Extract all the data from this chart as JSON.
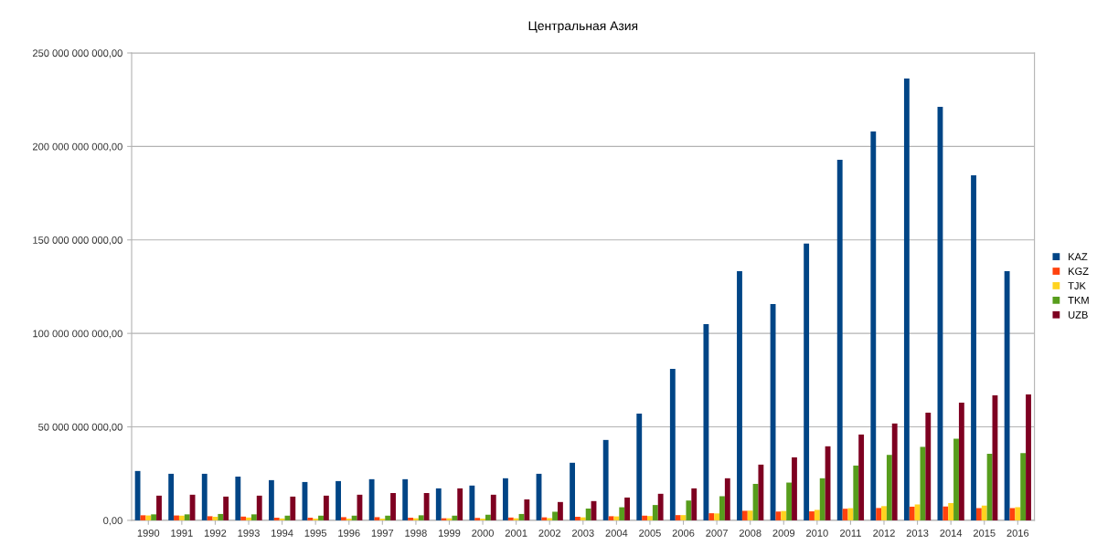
{
  "chart_data": {
    "type": "bar",
    "title": "Центральная Азия",
    "categories": [
      "1990",
      "1991",
      "1992",
      "1993",
      "1994",
      "1995",
      "1996",
      "1997",
      "1998",
      "1999",
      "2000",
      "2001",
      "2002",
      "2003",
      "2004",
      "2005",
      "2006",
      "2007",
      "2008",
      "2009",
      "2010",
      "2011",
      "2012",
      "2013",
      "2014",
      "2015",
      "2016"
    ],
    "series": [
      {
        "name": "KAZ",
        "color": "#004586",
        "values": [
          26400000000,
          24900000000,
          24900000000,
          23400000000,
          21500000000,
          20500000000,
          21000000000,
          22000000000,
          22000000000,
          17100000000,
          18600000000,
          22500000000,
          24900000000,
          30800000000,
          43000000000,
          57100000000,
          81000000000,
          105000000000,
          133300000000,
          115700000000,
          148000000000,
          192900000000,
          208000000000,
          236300000000,
          221200000000,
          184600000000,
          133300000000
        ]
      },
      {
        "name": "KGZ",
        "color": "#ff420e",
        "values": [
          2700000000,
          2600000000,
          2200000000,
          2000000000,
          1400000000,
          1400000000,
          1700000000,
          1700000000,
          1400000000,
          1100000000,
          1300000000,
          1500000000,
          1600000000,
          1900000000,
          2200000000,
          2500000000,
          2800000000,
          3800000000,
          5100000000,
          4700000000,
          4800000000,
          6200000000,
          6600000000,
          7300000000,
          7400000000,
          6600000000,
          6500000000
        ]
      },
      {
        "name": "TJK",
        "color": "#ffd320",
        "values": [
          2600000000,
          2500000000,
          1900000000,
          1500000000,
          1000000000,
          900000000,
          900000000,
          900000000,
          1100000000,
          1100000000,
          900000000,
          1100000000,
          1200000000,
          1600000000,
          2100000000,
          2300000000,
          2800000000,
          3700000000,
          5200000000,
          5000000000,
          5600000000,
          6500000000,
          7600000000,
          8500000000,
          9200000000,
          7900000000,
          7000000000
        ]
      },
      {
        "name": "TKM",
        "color": "#579d1c",
        "values": [
          3200000000,
          3200000000,
          3400000000,
          3200000000,
          2500000000,
          2500000000,
          2500000000,
          2500000000,
          2700000000,
          2500000000,
          3000000000,
          3400000000,
          4600000000,
          6300000000,
          7000000000,
          8200000000,
          10600000000,
          12900000000,
          19500000000,
          20200000000,
          22500000000,
          29300000000,
          35000000000,
          39300000000,
          43600000000,
          35600000000,
          36000000000
        ]
      },
      {
        "name": "UZB",
        "color": "#7e0021",
        "values": [
          13200000000,
          13700000000,
          12700000000,
          13200000000,
          12700000000,
          13200000000,
          13700000000,
          14600000000,
          14600000000,
          17100000000,
          13700000000,
          11200000000,
          9800000000,
          10300000000,
          12200000000,
          14200000000,
          17100000000,
          22500000000,
          29800000000,
          33700000000,
          39600000000,
          45900000000,
          51800000000,
          57600000000,
          63000000000,
          66900000000,
          67400000000
        ]
      }
    ],
    "ylim": [
      0,
      250000000000
    ],
    "yticks": [
      {
        "value": 0,
        "label": "0,00"
      },
      {
        "value": 50000000000,
        "label": "50 000 000 000,00"
      },
      {
        "value": 100000000000,
        "label": "100 000 000 000,00"
      },
      {
        "value": 150000000000,
        "label": "150 000 000 000,00"
      },
      {
        "value": 200000000000,
        "label": "200 000 000 000,00"
      },
      {
        "value": 250000000000,
        "label": "250 000 000 000,00"
      }
    ],
    "grid": "y",
    "legend": "right"
  }
}
